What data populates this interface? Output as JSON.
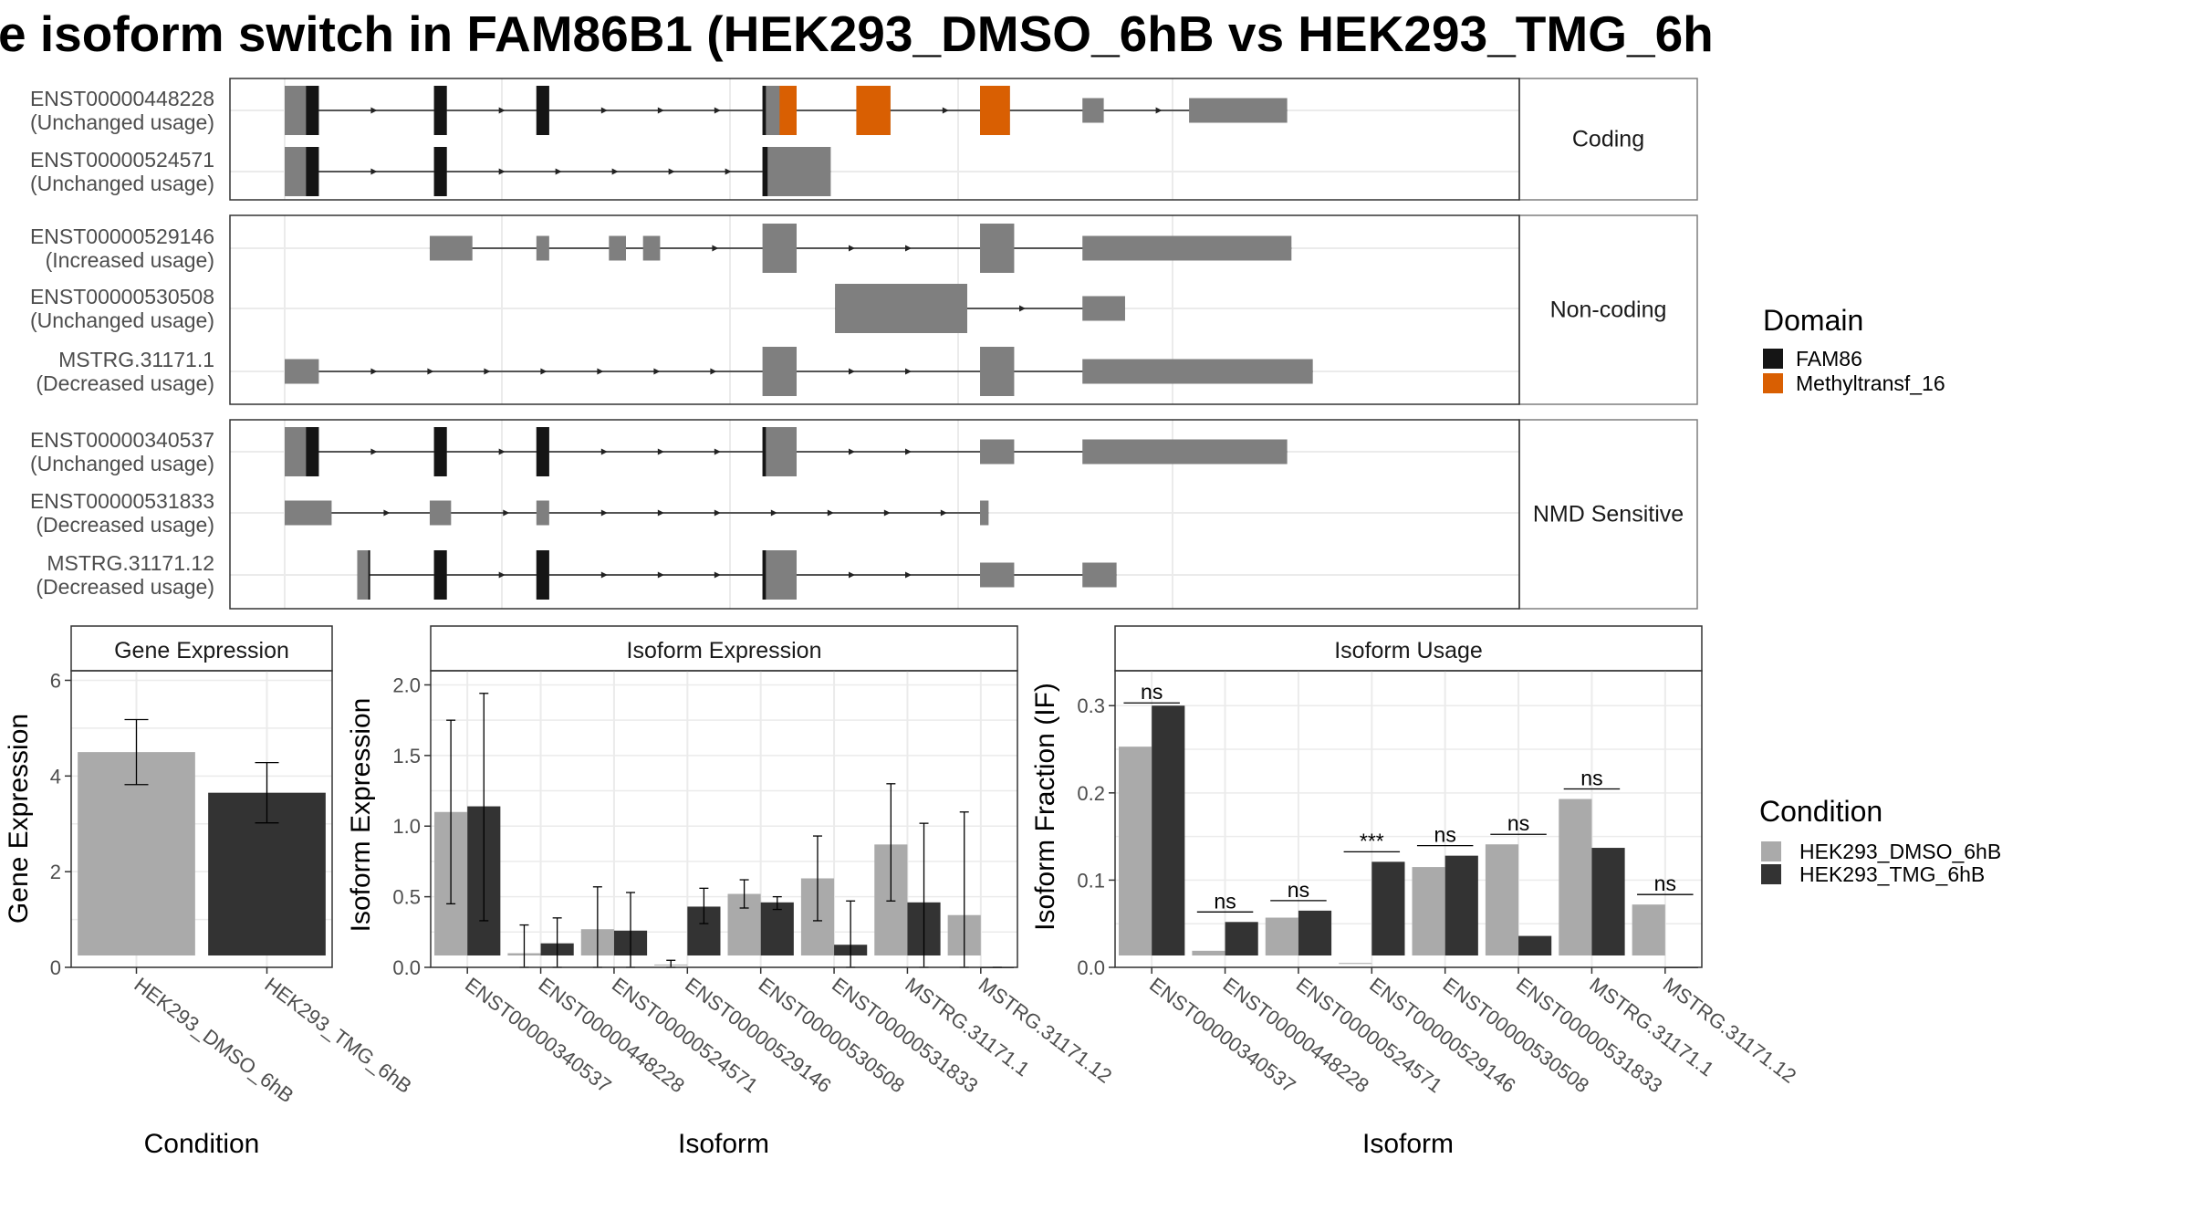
{
  "title": "e isoform switch in FAM86B1 (HEK293_DMSO_6hB vs HEK293_TMG_6h",
  "colors": {
    "exon": "#7f7f7f",
    "FAM86": "#151515",
    "Methyltransf_16": "#d95f02",
    "dmso": "#aaaaaa",
    "tmg": "#333333"
  },
  "structure": {
    "genome_range": [
      0,
      100
    ],
    "groups": [
      {
        "label": "Coding",
        "transcripts": [
          {
            "id": "ENST00000448228",
            "usage": "(Unchanged usage)",
            "exons": [
              [
                0,
                4
              ],
              [
                17.5,
                19
              ],
              [
                29.5,
                31
              ],
              [
                56,
                60
              ],
              [
                67,
                71
              ],
              [
                81.5,
                85
              ],
              [
                93.5,
                96
              ],
              [
                106,
                117.5
              ]
            ],
            "domains": [
              {
                "name": "FAM86",
                "s": 2.5,
                "e": 4
              },
              {
                "name": "FAM86",
                "s": 17.5,
                "e": 19
              },
              {
                "name": "FAM86",
                "s": 29.5,
                "e": 31
              },
              {
                "name": "FAM86",
                "s": 56,
                "e": 56.4
              },
              {
                "name": "Methyltransf_16",
                "s": 58,
                "e": 60
              },
              {
                "name": "Methyltransf_16",
                "s": 67,
                "e": 71
              },
              {
                "name": "Methyltransf_16",
                "s": 81.5,
                "e": 85
              }
            ]
          },
          {
            "id": "ENST00000524571",
            "usage": "(Unchanged usage)",
            "exons": [
              [
                0,
                4
              ],
              [
                17.5,
                19
              ],
              [
                56,
                64
              ]
            ],
            "domains": [
              {
                "name": "FAM86",
                "s": 2.5,
                "e": 4
              },
              {
                "name": "FAM86",
                "s": 17.5,
                "e": 19
              },
              {
                "name": "FAM86",
                "s": 56,
                "e": 56.6
              }
            ]
          }
        ]
      },
      {
        "label": "Non-coding",
        "transcripts": [
          {
            "id": "ENST00000529146",
            "usage": "(Increased usage)",
            "exons": [
              [
                17,
                22
              ],
              [
                29.5,
                31
              ],
              [
                38,
                40
              ],
              [
                42,
                44
              ],
              [
                56,
                60
              ],
              [
                81.5,
                85.5
              ],
              [
                93.5,
                118
              ]
            ],
            "domains": []
          },
          {
            "id": "ENST00000530508",
            "usage": "(Unchanged usage)",
            "exons": [
              [
                64.5,
                80
              ],
              [
                93.5,
                98.5
              ]
            ],
            "domains": []
          },
          {
            "id": "MSTRG.31171.1",
            "usage": "(Decreased usage)",
            "exons": [
              [
                0,
                4
              ],
              [
                56,
                60
              ],
              [
                81.5,
                85.5
              ],
              [
                93.5,
                120.5
              ]
            ],
            "domains": []
          }
        ]
      },
      {
        "label": "NMD Sensitive",
        "transcripts": [
          {
            "id": "ENST00000340537",
            "usage": "(Unchanged usage)",
            "exons": [
              [
                0,
                4
              ],
              [
                17.5,
                19
              ],
              [
                29.5,
                31
              ],
              [
                56,
                60
              ],
              [
                81.5,
                85.5
              ],
              [
                93.5,
                117.5
              ]
            ],
            "domains": [
              {
                "name": "FAM86",
                "s": 2.5,
                "e": 4
              },
              {
                "name": "FAM86",
                "s": 17.5,
                "e": 19
              },
              {
                "name": "FAM86",
                "s": 29.5,
                "e": 31
              },
              {
                "name": "FAM86",
                "s": 56,
                "e": 56.4
              }
            ]
          },
          {
            "id": "ENST00000531833",
            "usage": "(Decreased usage)",
            "exons": [
              [
                0,
                5.5
              ],
              [
                17,
                19.5
              ],
              [
                29.5,
                31
              ],
              [
                81.5,
                82.5
              ]
            ],
            "domains": []
          },
          {
            "id": "MSTRG.31171.12",
            "usage": "(Decreased usage)",
            "exons": [
              [
                8.5,
                10
              ],
              [
                17.5,
                19
              ],
              [
                29.5,
                31
              ],
              [
                56,
                60
              ],
              [
                81.5,
                85.5
              ],
              [
                93.5,
                97.5
              ]
            ],
            "domains": [
              {
                "name": "FAM86",
                "s": 9.8,
                "e": 10
              },
              {
                "name": "FAM86",
                "s": 17.5,
                "e": 19
              },
              {
                "name": "FAM86",
                "s": 29.5,
                "e": 31
              },
              {
                "name": "FAM86",
                "s": 56,
                "e": 56.4
              }
            ]
          }
        ]
      }
    ]
  },
  "legend_domain": {
    "title": "Domain",
    "items": [
      {
        "label": "FAM86",
        "color_key": "FAM86"
      },
      {
        "label": "Methyltransf_16",
        "color_key": "Methyltransf_16"
      }
    ]
  },
  "legend_condition": {
    "title": "Condition",
    "items": [
      {
        "label": "HEK293_DMSO_6hB",
        "color_key": "dmso"
      },
      {
        "label": "HEK293_TMG_6hB",
        "color_key": "tmg"
      }
    ]
  },
  "chart_data": [
    {
      "type": "bar",
      "panel_title": "Gene Expression",
      "xlabel": "Condition",
      "ylabel": "Gene Expression",
      "ylim": [
        0,
        6.2
      ],
      "yticks": [
        0,
        2,
        4,
        6
      ],
      "grid": true,
      "categories": [
        "HEK293_DMSO_6hB",
        "HEK293_TMG_6hB"
      ],
      "values": [
        4.5,
        3.65
      ],
      "error_low": [
        3.82,
        3.02
      ],
      "error_high": [
        5.18,
        4.28
      ]
    },
    {
      "type": "bar",
      "panel_title": "Isoform Expression",
      "xlabel": "Isoform",
      "ylabel": "Isoform Expression",
      "ylim": [
        0,
        2.1
      ],
      "yticks": [
        0.0,
        0.5,
        1.0,
        1.5,
        2.0
      ],
      "grid": true,
      "categories": [
        "ENST00000340537",
        "ENST00000448228",
        "ENST00000524571",
        "ENST00000529146",
        "ENST00000530508",
        "ENST00000531833",
        "MSTRG.31171.1",
        "MSTRG.31171.12"
      ],
      "series": [
        {
          "name": "HEK293_DMSO_6hB",
          "values": [
            1.1,
            0.1,
            0.27,
            0.02,
            0.52,
            0.63,
            0.87,
            0.37
          ],
          "error_low": [
            0.45,
            0.0,
            0.0,
            0.0,
            0.42,
            0.33,
            0.47,
            0.0
          ],
          "error_high": [
            1.75,
            0.3,
            0.57,
            0.05,
            0.62,
            0.93,
            1.3,
            1.1
          ]
        },
        {
          "name": "HEK293_TMG_6hB",
          "values": [
            1.14,
            0.17,
            0.26,
            0.43,
            0.46,
            0.16,
            0.46,
            0.0
          ],
          "error_low": [
            0.33,
            0.0,
            0.0,
            0.31,
            0.41,
            0.0,
            0.0,
            0.0
          ],
          "error_high": [
            1.94,
            0.35,
            0.53,
            0.56,
            0.5,
            0.47,
            1.02,
            0.0
          ]
        }
      ]
    },
    {
      "type": "bar",
      "panel_title": "Isoform Usage",
      "xlabel": "Isoform",
      "ylabel": "Isoform Fraction (IF)",
      "ylim": [
        0,
        0.34
      ],
      "yticks": [
        0.0,
        0.1,
        0.2,
        0.3
      ],
      "grid": true,
      "categories": [
        "ENST00000340537",
        "ENST00000448228",
        "ENST00000524571",
        "ENST00000529146",
        "ENST00000530508",
        "ENST00000531833",
        "MSTRG.31171.1",
        "MSTRG.31171.12"
      ],
      "series": [
        {
          "name": "HEK293_DMSO_6hB",
          "values": [
            0.253,
            0.019,
            0.057,
            0.005,
            0.115,
            0.141,
            0.193,
            0.072
          ]
        },
        {
          "name": "HEK293_TMG_6hB",
          "values": [
            0.3,
            0.052,
            0.065,
            0.121,
            0.128,
            0.036,
            0.137,
            0.0
          ]
        }
      ],
      "significance": [
        "ns",
        "ns",
        "ns",
        "***",
        "ns",
        "ns",
        "ns",
        "ns"
      ]
    }
  ]
}
